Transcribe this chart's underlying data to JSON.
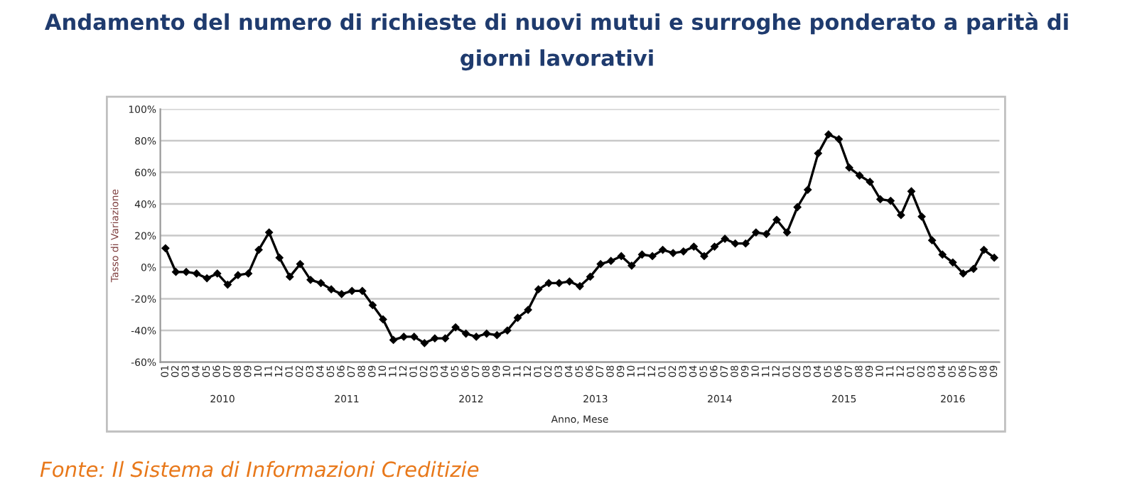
{
  "chart_data": {
    "type": "line",
    "title": "Andamento del numero di richieste di nuovi mutui e surroghe ponderato a parità di\ngiorni lavorativi",
    "xlabel": "Anno, Mese",
    "ylabel": "Tasso di Variazione",
    "categories": [
      "01",
      "02",
      "03",
      "04",
      "05",
      "06",
      "07",
      "08",
      "09",
      "10",
      "11",
      "12",
      "01",
      "02",
      "03",
      "04",
      "05",
      "06",
      "07",
      "08",
      "09",
      "10",
      "11",
      "12",
      "01",
      "02",
      "03",
      "04",
      "05",
      "06",
      "07",
      "08",
      "09",
      "10",
      "11",
      "12",
      "01",
      "02",
      "03",
      "04",
      "05",
      "06",
      "07",
      "08",
      "09",
      "10",
      "11",
      "12",
      "01",
      "02",
      "03",
      "04",
      "05",
      "06",
      "07",
      "08",
      "09",
      "10",
      "11",
      "12",
      "01",
      "02",
      "03",
      "04",
      "05",
      "06",
      "07",
      "08",
      "09",
      "10",
      "11",
      "12",
      "01",
      "02",
      "03",
      "04",
      "05",
      "06",
      "07",
      "08",
      "09"
    ],
    "series": [
      {
        "color": "#000000",
        "values": [
          12,
          -3,
          -3,
          -4,
          -7,
          -4,
          -11,
          -5,
          -4,
          11,
          22,
          6,
          -6,
          2,
          -8,
          -10,
          -14,
          -17,
          -15,
          -15,
          -24,
          -33,
          -46,
          -44,
          -44,
          -48,
          -45,
          -45,
          -38,
          -42,
          -44,
          -42,
          -43,
          -40,
          -32,
          -27,
          -14,
          -10,
          -10,
          -9,
          -12,
          -6,
          2,
          4,
          7,
          1,
          8,
          7,
          11,
          9,
          10,
          13,
          7,
          13,
          18,
          15,
          15,
          22,
          21,
          30,
          22,
          38,
          49,
          72,
          84,
          81,
          63,
          58,
          54,
          43,
          42,
          33,
          48,
          32,
          17,
          8,
          3,
          -4,
          -1,
          11,
          6
        ]
      }
    ],
    "ylim": [
      -60,
      100
    ],
    "yticks": [
      {
        "value": -60,
        "label": "-60%"
      },
      {
        "value": -40,
        "label": "-40%"
      },
      {
        "value": -20,
        "label": "-20%"
      },
      {
        "value": 0,
        "label": "0%"
      },
      {
        "value": 20,
        "label": "20%"
      },
      {
        "value": 40,
        "label": "40%"
      },
      {
        "value": 60,
        "label": "60%"
      },
      {
        "value": 80,
        "label": "80%"
      },
      {
        "value": 100,
        "label": "100%"
      }
    ],
    "grid": "y",
    "marker": "diamond",
    "line_style": "solid",
    "legend": false,
    "annotations": [
      "2010",
      "2011",
      "2012",
      "2013",
      "2014",
      "2015",
      "2016",
      "Fonte: Il Sistema di Informazioni Creditizie"
    ]
  }
}
